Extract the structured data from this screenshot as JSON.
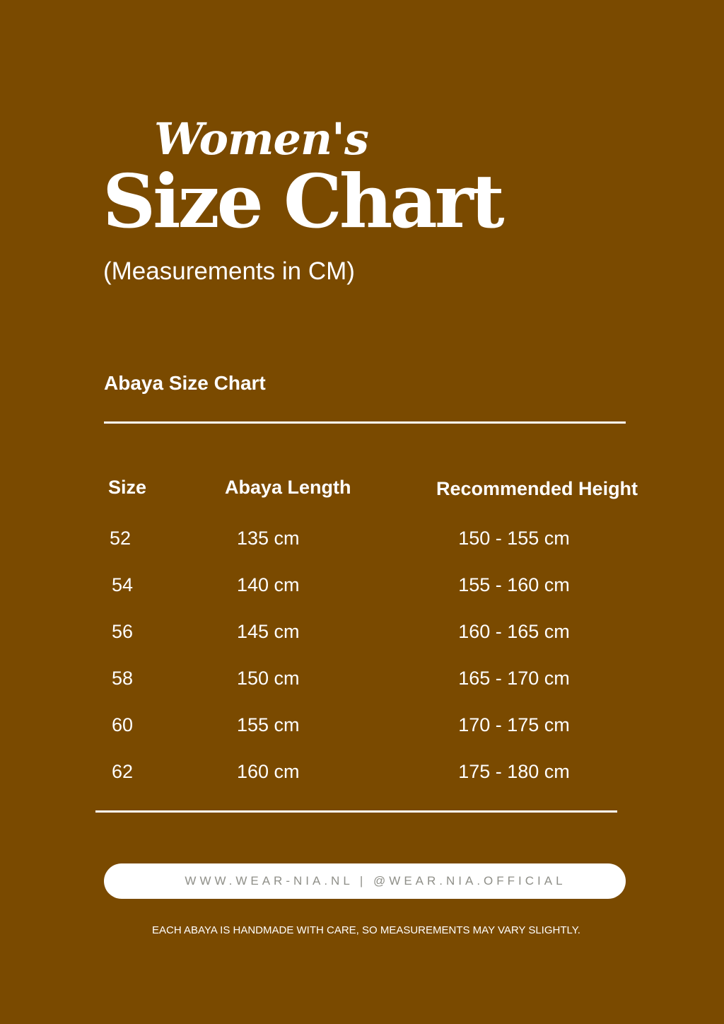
{
  "header": {
    "script_title": "Women's",
    "title": "Size Chart",
    "subtitle": "(Measurements in CM)"
  },
  "section": {
    "title": "Abaya Size Chart"
  },
  "table": {
    "columns": [
      "Size",
      "Abaya Length",
      "Recommended Height"
    ],
    "rows": [
      [
        "52",
        "135 cm",
        "150 - 155 cm"
      ],
      [
        "54",
        "140 cm",
        "155 - 160 cm"
      ],
      [
        "56",
        "145 cm",
        "160 - 165 cm"
      ],
      [
        "58",
        "150 cm",
        "165 - 170 cm"
      ],
      [
        "60",
        "155 cm",
        "170 - 175 cm"
      ],
      [
        "62",
        "160 cm",
        "175 - 180 cm"
      ]
    ]
  },
  "footer": {
    "contact": "WWW.WEAR-NIA.NL | @WEAR.NIA.OFFICIAL",
    "note": "EACH ABAYA IS HANDMADE WITH CARE, SO MEASUREMENTS MAY VARY SLIGHTLY."
  },
  "colors": {
    "background": "#7a4a00",
    "text": "#ffffff",
    "pill_text": "#8f8f88"
  }
}
